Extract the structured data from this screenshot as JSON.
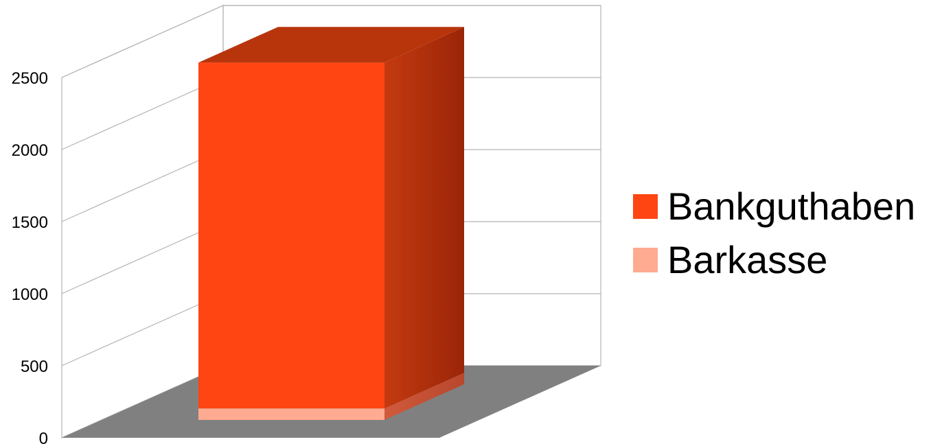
{
  "chart_data": {
    "type": "bar",
    "stacked": true,
    "three_d": true,
    "categories": [
      ""
    ],
    "series": [
      {
        "name": "Barkasse",
        "values": [
          80
        ],
        "color": "#ffab91"
      },
      {
        "name": "Bankguthaben",
        "values": [
          2400
        ],
        "color": "#ff4511"
      }
    ],
    "y_ticks": [
      "0",
      "500",
      "1000",
      "1500",
      "2000",
      "2500"
    ],
    "ylim": [
      0,
      2500
    ],
    "grid": true,
    "legend_position": "right",
    "floor_color": "#808080",
    "title": "",
    "xlabel": "",
    "ylabel": ""
  }
}
